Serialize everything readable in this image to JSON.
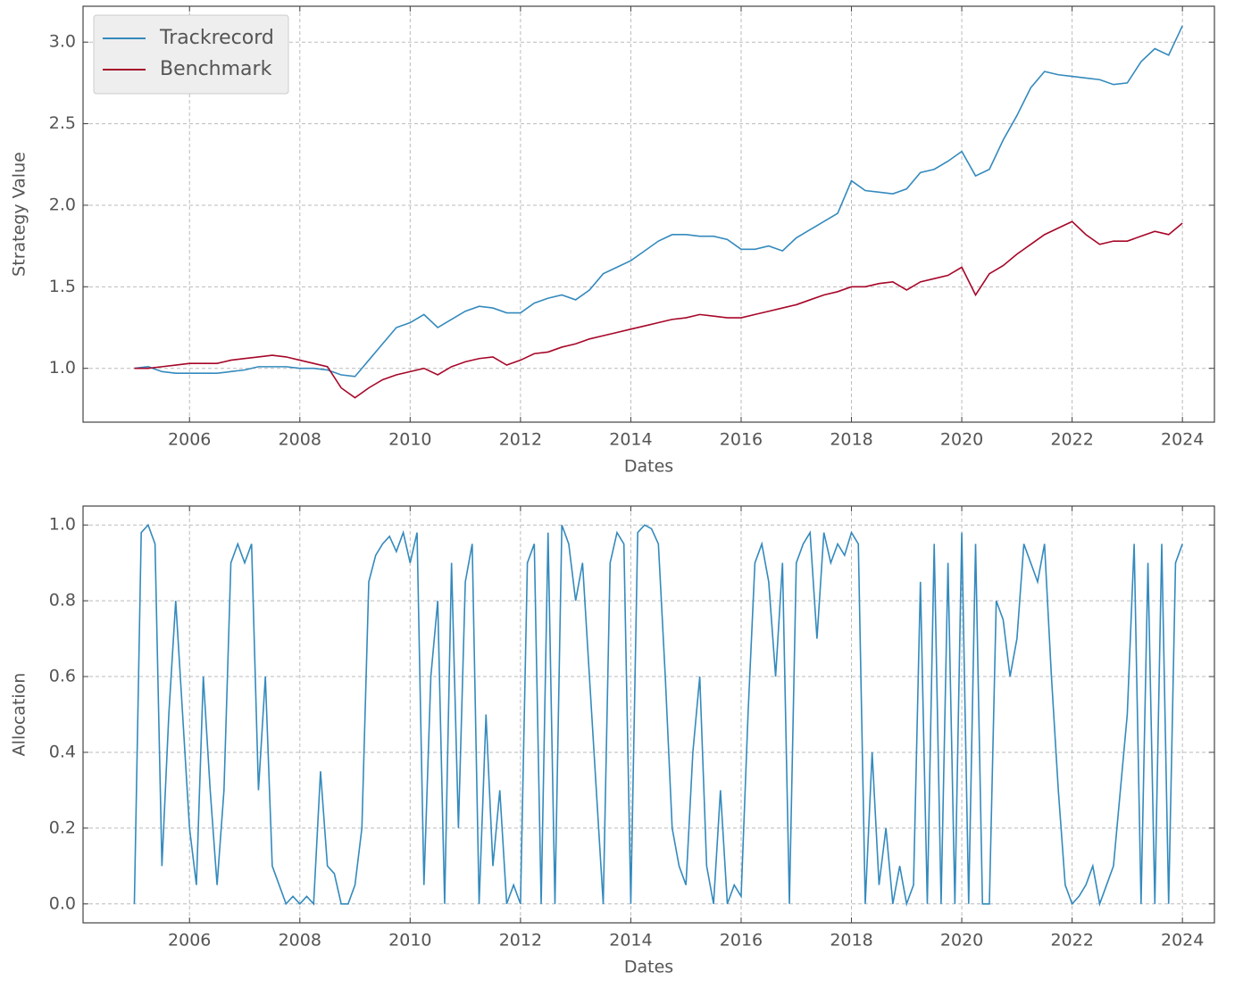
{
  "chart_data": [
    {
      "type": "line",
      "xlabel": "Dates",
      "ylabel": "Strategy Value",
      "grid": true,
      "legend": "upper left",
      "xlim": [
        2004.07,
        2024.58
      ],
      "ylim": [
        0.67,
        3.22
      ],
      "xticks": [
        2006,
        2008,
        2010,
        2012,
        2014,
        2016,
        2018,
        2020,
        2022,
        2024
      ],
      "yticks": [
        {
          "value": 1,
          "label": "1.0"
        },
        1.5,
        {
          "value": 2,
          "label": "2.0"
        },
        2.5,
        {
          "value": 3,
          "label": "3.0"
        }
      ],
      "x": [
        2005,
        2005.25,
        2005.5,
        2005.75,
        2006,
        2006.25,
        2006.5,
        2006.75,
        2007,
        2007.25,
        2007.5,
        2007.75,
        2008,
        2008.25,
        2008.5,
        2008.75,
        2009,
        2009.25,
        2009.5,
        2009.75,
        2010,
        2010.25,
        2010.5,
        2010.75,
        2011,
        2011.25,
        2011.5,
        2011.75,
        2012,
        2012.25,
        2012.5,
        2012.75,
        2013,
        2013.25,
        2013.5,
        2013.75,
        2014,
        2014.25,
        2014.5,
        2014.75,
        2015,
        2015.25,
        2015.5,
        2015.75,
        2016,
        2016.25,
        2016.5,
        2016.75,
        2017,
        2017.25,
        2017.5,
        2017.75,
        2018,
        2018.25,
        2018.5,
        2018.75,
        2019,
        2019.25,
        2019.5,
        2019.75,
        2020,
        2020.25,
        2020.5,
        2020.75,
        2021,
        2021.25,
        2021.5,
        2021.75,
        2022,
        2022.25,
        2022.5,
        2022.75,
        2023,
        2023.25,
        2023.5,
        2023.75,
        2024
      ],
      "series": [
        {
          "name": "Trackrecord",
          "color": "#348ABD",
          "values": [
            1.0,
            1.01,
            0.98,
            0.97,
            0.97,
            0.97,
            0.97,
            0.98,
            0.99,
            1.01,
            1.01,
            1.01,
            1.0,
            1.0,
            0.99,
            0.96,
            0.95,
            1.05,
            1.15,
            1.25,
            1.28,
            1.33,
            1.25,
            1.3,
            1.35,
            1.38,
            1.37,
            1.34,
            1.34,
            1.4,
            1.43,
            1.45,
            1.42,
            1.48,
            1.58,
            1.62,
            1.66,
            1.72,
            1.78,
            1.82,
            1.82,
            1.81,
            1.81,
            1.79,
            1.73,
            1.73,
            1.75,
            1.72,
            1.8,
            1.85,
            1.9,
            1.95,
            2.15,
            2.09,
            2.08,
            2.07,
            2.1,
            2.2,
            2.22,
            2.27,
            2.33,
            2.18,
            2.22,
            2.4,
            2.55,
            2.72,
            2.82,
            2.8,
            2.79,
            2.78,
            2.77,
            2.74,
            2.75,
            2.88,
            2.96,
            2.92,
            3.1
          ]
        },
        {
          "name": "Benchmark",
          "color": "#A60628",
          "values": [
            1.0,
            1.0,
            1.01,
            1.02,
            1.03,
            1.03,
            1.03,
            1.05,
            1.06,
            1.07,
            1.08,
            1.07,
            1.05,
            1.03,
            1.01,
            0.88,
            0.82,
            0.88,
            0.93,
            0.96,
            0.98,
            1.0,
            0.96,
            1.01,
            1.04,
            1.06,
            1.07,
            1.02,
            1.05,
            1.09,
            1.1,
            1.13,
            1.15,
            1.18,
            1.2,
            1.22,
            1.24,
            1.26,
            1.28,
            1.3,
            1.31,
            1.33,
            1.32,
            1.31,
            1.31,
            1.33,
            1.35,
            1.37,
            1.39,
            1.42,
            1.45,
            1.47,
            1.5,
            1.5,
            1.52,
            1.53,
            1.48,
            1.53,
            1.55,
            1.57,
            1.62,
            1.45,
            1.58,
            1.63,
            1.7,
            1.76,
            1.82,
            1.86,
            1.9,
            1.82,
            1.76,
            1.78,
            1.78,
            1.81,
            1.84,
            1.82,
            1.89
          ]
        }
      ]
    },
    {
      "type": "line",
      "xlabel": "Dates",
      "ylabel": "Allocation",
      "grid": true,
      "xlim": [
        2004.07,
        2024.58
      ],
      "ylim": [
        -0.05,
        1.05
      ],
      "xticks": [
        2006,
        2008,
        2010,
        2012,
        2014,
        2016,
        2018,
        2020,
        2022,
        2024
      ],
      "yticks": [
        {
          "value": 0,
          "label": "0.0"
        },
        0.2,
        0.4,
        0.6,
        0.8,
        {
          "value": 1,
          "label": "1.0"
        }
      ],
      "x": [
        2005,
        2005.125,
        2005.25,
        2005.375,
        2005.5,
        2005.625,
        2005.75,
        2005.875,
        2006,
        2006.125,
        2006.25,
        2006.375,
        2006.5,
        2006.625,
        2006.75,
        2006.875,
        2007,
        2007.125,
        2007.25,
        2007.375,
        2007.5,
        2007.625,
        2007.75,
        2007.875,
        2008,
        2008.125,
        2008.25,
        2008.375,
        2008.5,
        2008.625,
        2008.75,
        2008.875,
        2009,
        2009.125,
        2009.25,
        2009.375,
        2009.5,
        2009.625,
        2009.75,
        2009.875,
        2010,
        2010.125,
        2010.25,
        2010.375,
        2010.5,
        2010.625,
        2010.75,
        2010.875,
        2011,
        2011.125,
        2011.25,
        2011.375,
        2011.5,
        2011.625,
        2011.75,
        2011.875,
        2012,
        2012.125,
        2012.25,
        2012.375,
        2012.5,
        2012.625,
        2012.75,
        2012.875,
        2013,
        2013.125,
        2013.25,
        2013.375,
        2013.5,
        2013.625,
        2013.75,
        2013.875,
        2014,
        2014.125,
        2014.25,
        2014.375,
        2014.5,
        2014.625,
        2014.75,
        2014.875,
        2015,
        2015.125,
        2015.25,
        2015.375,
        2015.5,
        2015.625,
        2015.75,
        2015.875,
        2016,
        2016.125,
        2016.25,
        2016.375,
        2016.5,
        2016.625,
        2016.75,
        2016.875,
        2017,
        2017.125,
        2017.25,
        2017.375,
        2017.5,
        2017.625,
        2017.75,
        2017.875,
        2018,
        2018.125,
        2018.25,
        2018.375,
        2018.5,
        2018.625,
        2018.75,
        2018.875,
        2019,
        2019.125,
        2019.25,
        2019.375,
        2019.5,
        2019.625,
        2019.75,
        2019.875,
        2020,
        2020.125,
        2020.25,
        2020.375,
        2020.5,
        2020.625,
        2020.75,
        2020.875,
        2021,
        2021.125,
        2021.25,
        2021.375,
        2021.5,
        2021.625,
        2021.75,
        2021.875,
        2022,
        2022.125,
        2022.25,
        2022.375,
        2022.5,
        2022.625,
        2022.75,
        2022.875,
        2023,
        2023.125,
        2023.25,
        2023.375,
        2023.5,
        2023.625,
        2023.75,
        2023.875,
        2024
      ],
      "series": [
        {
          "name": "Allocation",
          "color": "#348ABD",
          "values": [
            0,
            0.98,
            1.0,
            0.95,
            0.1,
            0.5,
            0.8,
            0.5,
            0.2,
            0.05,
            0.6,
            0.3,
            0.05,
            0.3,
            0.9,
            0.95,
            0.9,
            0.95,
            0.3,
            0.6,
            0.1,
            0.05,
            0,
            0.02,
            0,
            0.02,
            0,
            0.35,
            0.1,
            0.08,
            0,
            0,
            0.05,
            0.2,
            0.85,
            0.92,
            0.95,
            0.97,
            0.93,
            0.98,
            0.9,
            0.98,
            0.05,
            0.6,
            0.8,
            0,
            0.9,
            0.2,
            0.85,
            0.95,
            0,
            0.5,
            0.1,
            0.3,
            0,
            0.05,
            0,
            0.9,
            0.95,
            0,
            0.98,
            0,
            1.0,
            0.95,
            0.8,
            0.9,
            0.6,
            0.3,
            0,
            0.9,
            0.98,
            0.95,
            0,
            0.98,
            1.0,
            0.99,
            0.95,
            0.6,
            0.2,
            0.1,
            0.05,
            0.4,
            0.6,
            0.1,
            0,
            0.3,
            0,
            0.05,
            0.02,
            0.5,
            0.9,
            0.95,
            0.85,
            0.6,
            0.9,
            0,
            0.9,
            0.95,
            0.98,
            0.7,
            0.98,
            0.9,
            0.95,
            0.92,
            0.98,
            0.95,
            0,
            0.4,
            0.05,
            0.2,
            0,
            0.1,
            0,
            0.05,
            0.85,
            0,
            0.95,
            0,
            0.9,
            0,
            0.98,
            0,
            0.95,
            0,
            0,
            0.8,
            0.75,
            0.6,
            0.7,
            0.95,
            0.9,
            0.85,
            0.95,
            0.6,
            0.3,
            0.05,
            0,
            0.02,
            0.05,
            0.1,
            0,
            0.05,
            0.1,
            0.3,
            0.5,
            0.95,
            0,
            0.9,
            0,
            0.95,
            0,
            0.9,
            0.95
          ]
        }
      ]
    }
  ]
}
